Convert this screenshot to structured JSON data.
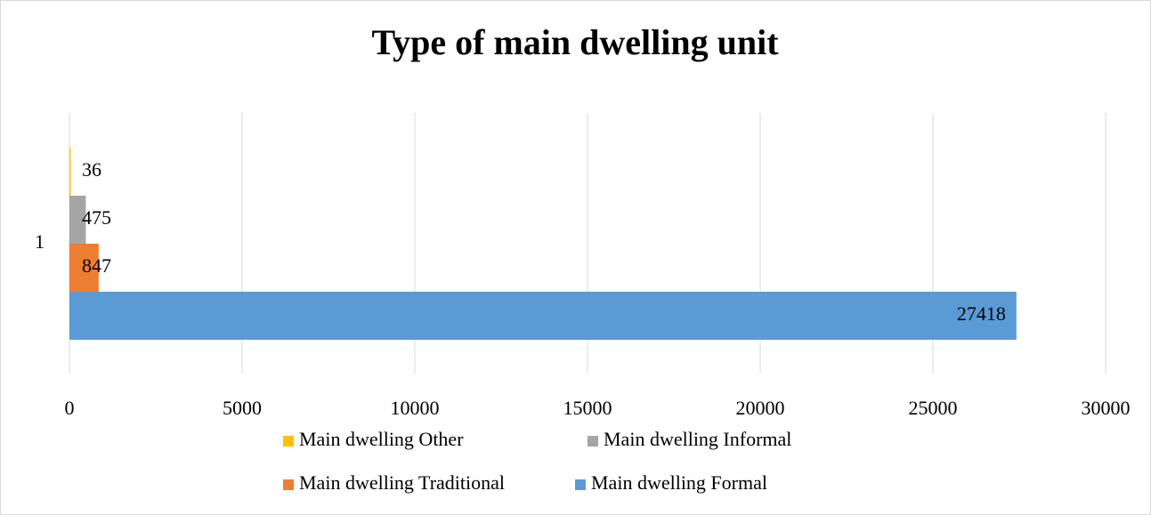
{
  "chart_data": {
    "type": "bar",
    "orientation": "horizontal",
    "title": "Type of main dwelling unit",
    "categories": [
      "1"
    ],
    "series": [
      {
        "name": "Main dwelling Other",
        "color": "#ffc000",
        "values": [
          36
        ]
      },
      {
        "name": "Main dwelling Informal",
        "color": "#a5a5a5",
        "values": [
          475
        ]
      },
      {
        "name": "Main dwelling Traditional",
        "color": "#ed7d31",
        "values": [
          847
        ]
      },
      {
        "name": "Main dwelling Formal",
        "color": "#5b9bd5",
        "values": [
          27418
        ]
      }
    ],
    "xlim": [
      0,
      30000
    ],
    "xticks": [
      0,
      5000,
      10000,
      15000,
      20000,
      25000,
      30000
    ],
    "grid": true,
    "legend": "bottom"
  }
}
